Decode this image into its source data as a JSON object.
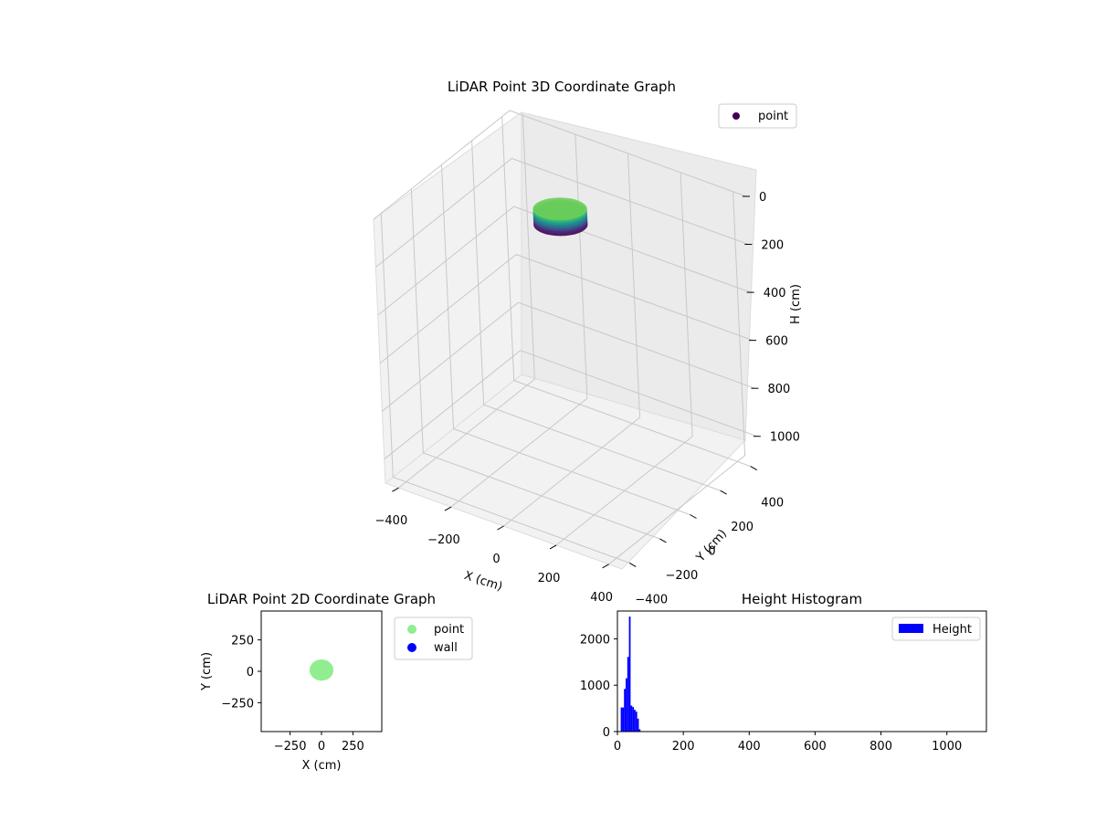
{
  "chart_data": [
    {
      "type": "scatter3d",
      "title": "LiDAR Point 3D Coordinate Graph",
      "xlabel": "X (cm)",
      "ylabel": "Y (cm)",
      "zlabel": "H (cm)",
      "xlim": [
        -450,
        450
      ],
      "ylim": [
        -450,
        450
      ],
      "zlim": [
        0,
        1100
      ],
      "z_inverted": true,
      "xticks": [
        -400,
        -200,
        0,
        200,
        400
      ],
      "yticks": [
        -400,
        -200,
        0,
        200,
        400
      ],
      "zticks": [
        0,
        200,
        400,
        600,
        800,
        1000
      ],
      "colormap": "viridis",
      "legend": {
        "entries": [
          "point"
        ],
        "position": "upper right"
      },
      "series": [
        {
          "name": "point",
          "color": "#440154",
          "cluster": {
            "x_center": 0,
            "y_center": 0,
            "x_radius": 80,
            "y_radius": 70,
            "z_range": [
              5,
              70
            ]
          }
        }
      ]
    },
    {
      "type": "scatter",
      "title": "LiDAR Point 2D Coordinate Graph",
      "xlabel": "X (cm)",
      "ylabel": "Y (cm)",
      "xlim": [
        -480,
        480
      ],
      "ylim": [
        -480,
        480
      ],
      "xticks": [
        -250,
        0,
        250
      ],
      "yticks": [
        -250,
        0,
        250
      ],
      "legend": {
        "entries": [
          "point",
          "wall"
        ],
        "position": "outside right"
      },
      "series": [
        {
          "name": "point",
          "color": "#90ee90",
          "cluster": {
            "x_center": 0,
            "y_center": 10,
            "x_radius": 95,
            "y_radius": 85
          }
        },
        {
          "name": "wall",
          "color": "#0000ff",
          "points": []
        }
      ]
    },
    {
      "type": "bar",
      "title": "Height Histogram",
      "xlabel": "",
      "ylabel": "",
      "xlim": [
        0,
        1120
      ],
      "ylim": [
        0,
        2600
      ],
      "xticks": [
        0,
        200,
        400,
        600,
        800,
        1000
      ],
      "yticks": [
        0,
        1000,
        2000
      ],
      "legend": {
        "entries": [
          "Height"
        ],
        "position": "upper right"
      },
      "series": [
        {
          "name": "Height",
          "color": "#0000ff",
          "bins": [
            {
              "x0": 10,
              "x1": 15,
              "value": 520
            },
            {
              "x0": 15,
              "x1": 20,
              "value": 520
            },
            {
              "x0": 20,
              "x1": 25,
              "value": 920
            },
            {
              "x0": 25,
              "x1": 30,
              "value": 1150
            },
            {
              "x0": 30,
              "x1": 35,
              "value": 1610
            },
            {
              "x0": 35,
              "x1": 40,
              "value": 2480
            },
            {
              "x0": 40,
              "x1": 45,
              "value": 560
            },
            {
              "x0": 45,
              "x1": 50,
              "value": 530
            },
            {
              "x0": 50,
              "x1": 55,
              "value": 470
            },
            {
              "x0": 55,
              "x1": 60,
              "value": 430
            },
            {
              "x0": 60,
              "x1": 65,
              "value": 280
            },
            {
              "x0": 65,
              "x1": 70,
              "value": 50
            }
          ]
        }
      ]
    }
  ]
}
